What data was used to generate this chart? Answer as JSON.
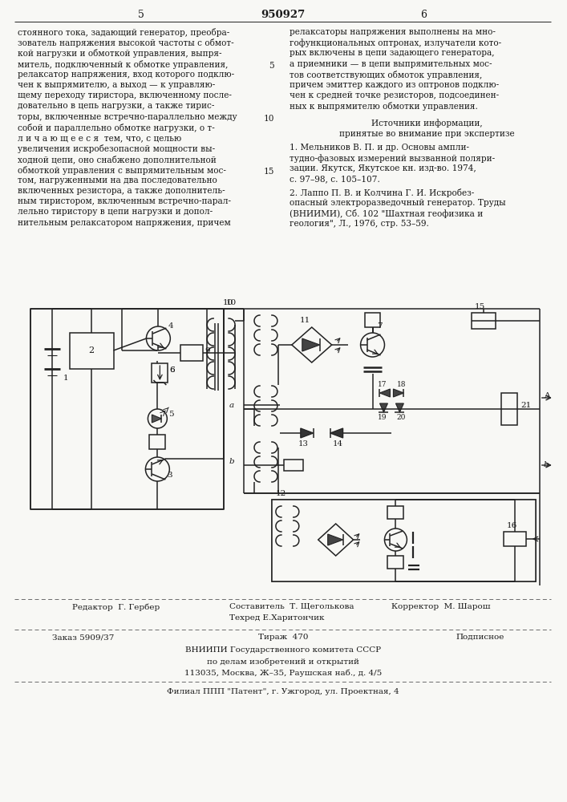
{
  "page_color": "#f8f8f5",
  "text_color": "#1a1a1a",
  "line_color": "#222222",
  "title_number": "950927",
  "left_col_number": "5",
  "right_col_number": "6",
  "left_text_lines": [
    "стоянного тока, задающий генератор, преобра-",
    "зователь напряжения высокой частоты с обмот-",
    "кой нагрузки и обмоткой управления, выпря-",
    "митель, подключенный к обмотке управления,",
    "релаксатор напряжения, вход которого подклю-",
    "чен к выпрямителю, а выход — к управляю-",
    "щему переходу тиристора, включенному после-",
    "довательно в цепь нагрузки, а также тирис-",
    "торы, включенные встречно-параллельно между",
    "собой и параллельно обмотке нагрузки, о т-",
    "л и ч а ю щ е е с я  тем, что, с целью",
    "увеличения искробезопасной мощности вы-",
    "ходной цепи, оно снабжено дополнительной",
    "обмоткой управления с выпрямительным мос-",
    "том, нагруженными на два последовательно",
    "включенных резистора, а также дополнитель-",
    "ным тиристором, включенным встречно-парал-",
    "лельно тиристору в цепи нагрузки и допол-",
    "нительным релаксатором напряжения, причем"
  ],
  "right_text_lines": [
    "релаксаторы напряжения выполнены на мно-",
    "гофункциональных оптронах, излучатели кото-",
    "рых включены в цепи задающего генератора,",
    "а приемники — в цепи выпрямительных мос-",
    "тов соответствующих обмоток управления,",
    "причем эмиттер каждого из оптронов подклю-",
    "чен к средней точке резисторов, подсоединен-",
    "ных к выпрямителю обмотки управления."
  ],
  "sources_header": "Источники информации,",
  "sources_subheader": "принятые во внимание при экспертизе",
  "source1_lines": [
    "1. Мельников В. П. и др. Основы ампли-",
    "тудно-фазовых измерений вызванной поляри-",
    "зации. Якутск, Якутское кн. изд-во. 1974,",
    "с. 97–98, с. 105–107."
  ],
  "source2_lines": [
    "2. Лаппо П. В. и Колчина Г. И. Искробез-",
    "опасный электроразведочный генератор. Труды",
    "(ВНИИМИ), Сб. 102 \"Шахтная геофизика и",
    "геология\", Л., 1976, стр. 53–59."
  ],
  "editor_line": "Редактор  Г. Гербер",
  "composer_line": "Составитель  Т. Щеголькова",
  "techred_line": "Техред Е.Харитончик",
  "corrector_line": "Корректор  М. Шарош",
  "order_line": "Заказ 5909/37",
  "tirazh_line": "Тираж  470",
  "podpisnoe_line": "Подписное",
  "vniiipi_line": "ВНИИПИ Государственного комитета СССР",
  "po_delam_line": "по делам изобретений и открытий",
  "address_line": "113035, Москва, Ж–35, Раушская наб., д. 4/5",
  "filial_line": "Филиал ППП \"Патент\", г. Ужгород, ул. Проектная, 4"
}
